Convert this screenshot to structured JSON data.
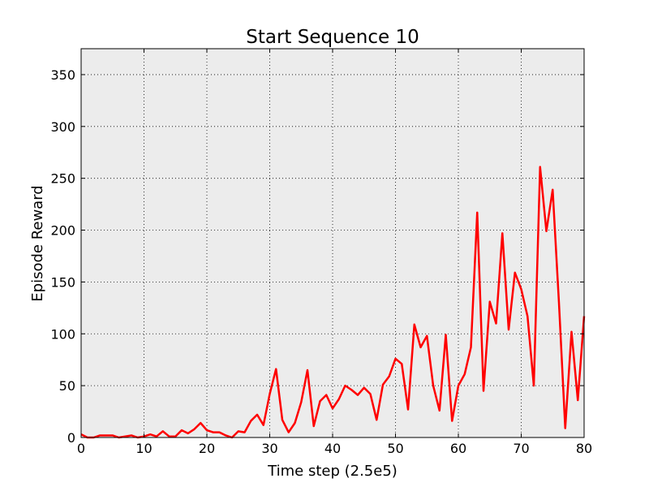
{
  "chart_data": {
    "type": "line",
    "title": "Start Sequence 10",
    "xlabel": "Time step (2.5e5)",
    "ylabel": "Episode Reward",
    "xlim": [
      0,
      80
    ],
    "ylim": [
      0,
      375
    ],
    "xticks": [
      0,
      10,
      20,
      30,
      40,
      50,
      60,
      70,
      80
    ],
    "yticks": [
      0,
      50,
      100,
      150,
      200,
      250,
      300,
      350
    ],
    "grid": true,
    "background": "#ececec",
    "series": [
      {
        "color": "#ff0000",
        "x": [
          0,
          1,
          2,
          3,
          4,
          5,
          6,
          7,
          8,
          9,
          10,
          11,
          12,
          13,
          14,
          15,
          16,
          17,
          18,
          19,
          20,
          21,
          22,
          23,
          24,
          25,
          26,
          27,
          28,
          29,
          30,
          31,
          32,
          33,
          34,
          35,
          36,
          37,
          38,
          39,
          40,
          41,
          42,
          43,
          44,
          45,
          46,
          47,
          48,
          49,
          50,
          51,
          52,
          53,
          54,
          55,
          56,
          57,
          58,
          59,
          60,
          61,
          62,
          63,
          64,
          65,
          66,
          67,
          68,
          69,
          70,
          71,
          72,
          73,
          74,
          75,
          76,
          77,
          78,
          79,
          80
        ],
        "y": [
          3,
          0,
          0,
          2,
          2,
          2,
          0,
          1,
          2,
          0,
          1,
          3,
          1,
          6,
          1,
          1,
          7,
          4,
          8,
          14,
          7,
          5,
          5,
          2,
          0,
          6,
          5,
          16,
          22,
          12,
          42,
          66,
          17,
          5,
          14,
          34,
          65,
          11,
          35,
          41,
          28,
          37,
          50,
          46,
          41,
          48,
          42,
          17,
          51,
          59,
          76,
          71,
          27,
          109,
          87,
          98,
          50,
          26,
          99,
          16,
          50,
          61,
          87,
          217,
          45,
          131,
          110,
          197,
          104,
          159,
          143,
          117,
          50,
          261,
          199,
          239,
          130,
          9,
          102,
          36,
          117
        ]
      }
    ]
  }
}
